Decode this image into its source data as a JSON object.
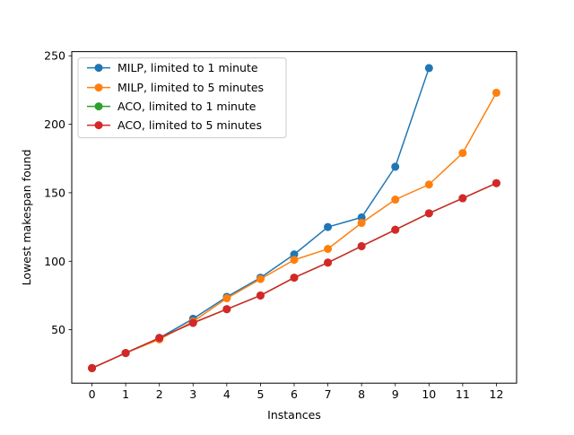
{
  "chart_data": {
    "type": "line",
    "title": "",
    "xlabel": "Instances",
    "ylabel": "Lowest makespan found",
    "xlim": [
      -0.6,
      12.6
    ],
    "ylim": [
      11,
      253
    ],
    "xticks": [
      0,
      1,
      2,
      3,
      4,
      5,
      6,
      7,
      8,
      9,
      10,
      11,
      12
    ],
    "yticks": [
      50,
      100,
      150,
      200,
      250
    ],
    "grid": false,
    "legend_position": "top-left",
    "series": [
      {
        "name": "MILP, limited to 1 minute",
        "color": "#1f77b4",
        "x": [
          0,
          1,
          2,
          3,
          4,
          5,
          6,
          7,
          8,
          9,
          10
        ],
        "y": [
          22,
          33,
          44,
          58,
          74,
          88,
          105,
          125,
          132,
          169,
          241
        ]
      },
      {
        "name": "MILP, limited to 5 minutes",
        "color": "#ff7f0e",
        "x": [
          0,
          1,
          2,
          3,
          4,
          5,
          6,
          7,
          8,
          9,
          10,
          11,
          12
        ],
        "y": [
          22,
          33,
          43,
          56,
          73,
          87,
          101,
          109,
          128,
          145,
          156,
          179,
          223
        ]
      },
      {
        "name": "ACO, limited to 1 minute",
        "color": "#2ca02c",
        "x": [
          0,
          1,
          2,
          3,
          4,
          5,
          6,
          7,
          8,
          9,
          10,
          11,
          12
        ],
        "y": [
          22,
          33,
          44,
          55,
          65,
          75,
          88,
          99,
          111,
          123,
          135,
          146,
          157
        ]
      },
      {
        "name": "ACO, limited to 5 minutes",
        "color": "#d62728",
        "x": [
          0,
          1,
          2,
          3,
          4,
          5,
          6,
          7,
          8,
          9,
          10,
          11,
          12
        ],
        "y": [
          22,
          33,
          44,
          55,
          65,
          75,
          88,
          99,
          111,
          123,
          135,
          146,
          157
        ]
      }
    ]
  }
}
